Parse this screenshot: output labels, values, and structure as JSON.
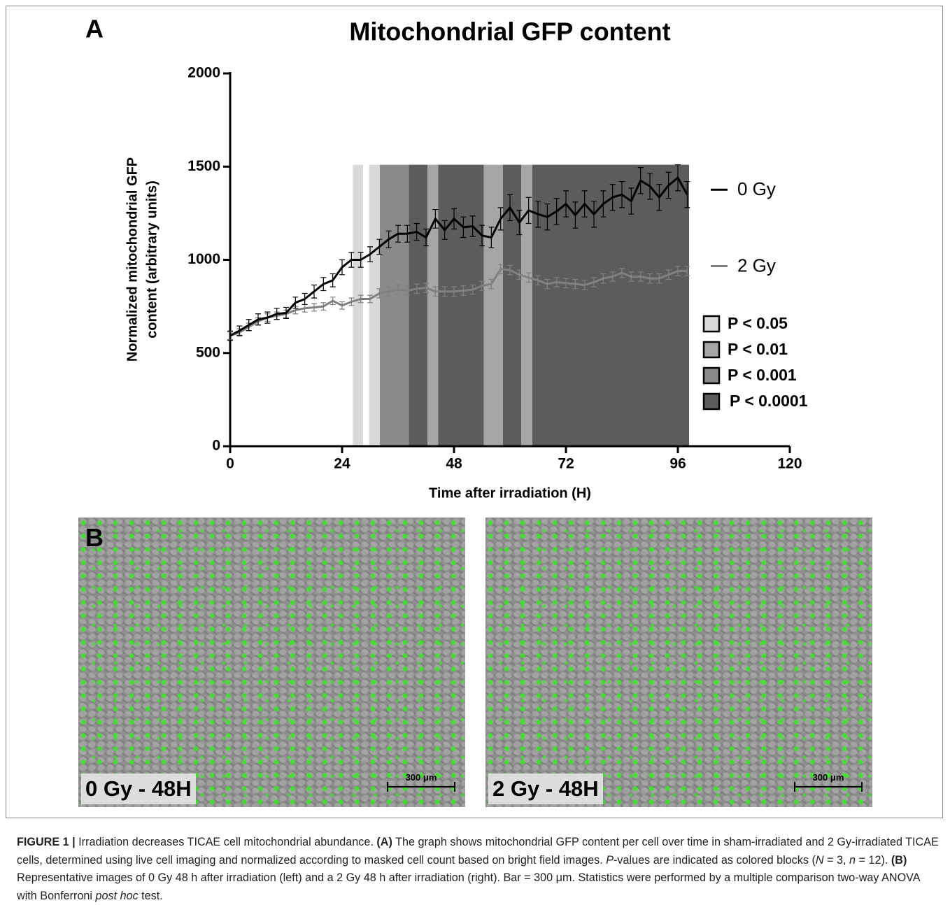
{
  "chart_data": {
    "type": "line",
    "panel_label": "A",
    "title": "Mitochondrial GFP content",
    "xlabel": "Time after irradiation (H)",
    "ylabel": [
      "Normalized mitochondrial GFP",
      "content (arbitrary units)"
    ],
    "xlim": [
      0,
      120
    ],
    "xticks": [
      0,
      24,
      48,
      72,
      96,
      120
    ],
    "ylim": [
      0,
      2000
    ],
    "yticks": [
      0,
      500,
      1000,
      1500,
      2000
    ],
    "x": [
      0,
      2,
      4,
      6,
      8,
      10,
      12,
      14,
      16,
      18,
      20,
      22,
      24,
      26,
      28,
      30,
      32,
      34,
      36,
      38,
      40,
      42,
      44,
      46,
      48,
      50,
      52,
      54,
      56,
      58,
      60,
      62,
      64,
      66,
      68,
      70,
      72,
      74,
      76,
      78,
      80,
      82,
      84,
      86,
      88,
      90,
      92,
      94,
      96,
      98
    ],
    "series": [
      {
        "name": "0 Gy",
        "color": "#000000",
        "values": [
          593,
          620,
          650,
          680,
          690,
          710,
          715,
          770,
          790,
          830,
          870,
          890,
          960,
          1000,
          1000,
          1030,
          1070,
          1110,
          1140,
          1140,
          1150,
          1120,
          1220,
          1160,
          1220,
          1175,
          1180,
          1130,
          1120,
          1220,
          1280,
          1200,
          1265,
          1245,
          1230,
          1260,
          1300,
          1240,
          1300,
          1245,
          1300,
          1335,
          1350,
          1315,
          1425,
          1395,
          1335,
          1400,
          1440,
          1350
        ],
        "errors": [
          25,
          25,
          30,
          30,
          30,
          30,
          30,
          30,
          30,
          35,
          35,
          35,
          40,
          40,
          40,
          40,
          40,
          45,
          45,
          45,
          45,
          45,
          50,
          50,
          55,
          55,
          55,
          55,
          55,
          60,
          70,
          65,
          70,
          70,
          70,
          70,
          70,
          70,
          70,
          70,
          70,
          70,
          70,
          70,
          70,
          70,
          70,
          70,
          70,
          70
        ]
      },
      {
        "name": "2 Gy",
        "color": "#808080",
        "values": [
          593,
          610,
          640,
          670,
          690,
          700,
          710,
          730,
          740,
          745,
          750,
          780,
          755,
          775,
          790,
          790,
          820,
          830,
          840,
          835,
          845,
          850,
          830,
          830,
          830,
          835,
          840,
          860,
          870,
          950,
          945,
          920,
          905,
          890,
          870,
          880,
          875,
          870,
          865,
          880,
          900,
          910,
          930,
          910,
          910,
          900,
          900,
          920,
          940,
          940
        ],
        "errors": [
          20,
          20,
          20,
          20,
          20,
          20,
          20,
          20,
          20,
          20,
          20,
          20,
          20,
          20,
          20,
          20,
          25,
          25,
          25,
          25,
          25,
          25,
          25,
          25,
          25,
          25,
          25,
          25,
          25,
          25,
          25,
          25,
          25,
          25,
          25,
          25,
          25,
          25,
          25,
          25,
          25,
          25,
          25,
          25,
          25,
          25,
          25,
          25,
          25,
          25
        ]
      }
    ],
    "p_levels": [
      {
        "label": "P < 0.05",
        "color": "#d9d9d9"
      },
      {
        "label": "P < 0.01",
        "color": "#a6a6a6"
      },
      {
        "label": "P < 0.001",
        "color": "#8a8a8a"
      },
      {
        "label": "P < 0.0001",
        "color": "#5c5c5c"
      }
    ],
    "block_top": 1510,
    "blocks": [
      {
        "x": [
          26.3,
          28.5
        ],
        "level": 0
      },
      {
        "x": [
          29.8,
          32.1
        ],
        "level": 0
      },
      {
        "x": [
          32.1,
          38.3
        ],
        "level": 2
      },
      {
        "x": [
          38.3,
          42.3
        ],
        "level": 3
      },
      {
        "x": [
          42.3,
          44.6
        ],
        "level": 1
      },
      {
        "x": [
          44.6,
          54.4
        ],
        "level": 3
      },
      {
        "x": [
          54.4,
          58.5
        ],
        "level": 1
      },
      {
        "x": [
          58.5,
          62.4
        ],
        "level": 3
      },
      {
        "x": [
          62.4,
          64.8
        ],
        "level": 1
      },
      {
        "x": [
          64.8,
          98.4
        ],
        "level": 3
      }
    ]
  },
  "panel_b": {
    "label": "B",
    "images": [
      {
        "caption": "0 Gy - 48H",
        "scale_bar": "300 μm"
      },
      {
        "caption": "2 Gy - 48H",
        "scale_bar": "300 μm"
      }
    ]
  },
  "caption": {
    "parts": [
      {
        "text": "FIGURE 1 |",
        "style": "b"
      },
      {
        "text": " Irradiation decreases TICAE cell mitochondrial abundance. ",
        "style": ""
      },
      {
        "text": "(A)",
        "style": "b"
      },
      {
        "text": " The graph shows mitochondrial GFP content per cell over time in sham-irradiated and 2 Gy-irradiated TICAE cells, determined using live cell imaging and normalized according to masked cell count based on bright field images. ",
        "style": ""
      },
      {
        "text": "P",
        "style": "i"
      },
      {
        "text": "-values are indicated as colored blocks (",
        "style": ""
      },
      {
        "text": "N",
        "style": "i"
      },
      {
        "text": " = 3, ",
        "style": ""
      },
      {
        "text": "n",
        "style": "i"
      },
      {
        "text": " = 12). ",
        "style": ""
      },
      {
        "text": "(B)",
        "style": "b"
      },
      {
        "text": " Representative images of 0 Gy 48 h after irradiation (left) and a 2 Gy 48 h after irradiation (right). Bar = 300 μm. Statistics were performed by a multiple comparison two-way ANOVA with Bonferroni ",
        "style": ""
      },
      {
        "text": "post hoc",
        "style": "i"
      },
      {
        "text": " test.",
        "style": ""
      }
    ]
  }
}
